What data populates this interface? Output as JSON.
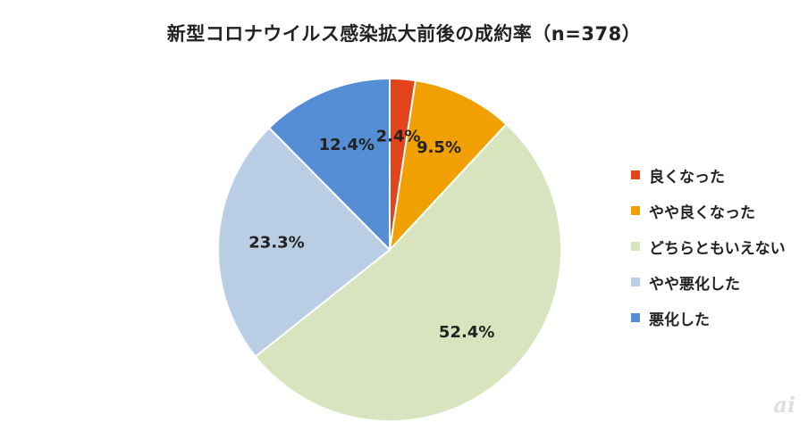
{
  "chart_data": {
    "type": "pie",
    "title": "新型コロナウイルス感染拡大前後の成約率（n=378）",
    "slices": [
      {
        "label": "良くなった",
        "value": 2.4,
        "display": "2.4%",
        "color": "#e2441c"
      },
      {
        "label": "やや良くなった",
        "value": 9.5,
        "display": "9.5%",
        "color": "#f0a000"
      },
      {
        "label": "どちらともいえない",
        "value": 52.4,
        "display": "52.4%",
        "color": "#d7e4bd"
      },
      {
        "label": "やや悪化した",
        "value": 23.3,
        "display": "23.3%",
        "color": "#b9cde5"
      },
      {
        "label": "悪化した",
        "value": 12.4,
        "display": "12.4%",
        "color": "#558ed5"
      }
    ],
    "legend_position": "right",
    "start_angle_deg": 0,
    "direction": "clockwise"
  },
  "watermark": "ai"
}
